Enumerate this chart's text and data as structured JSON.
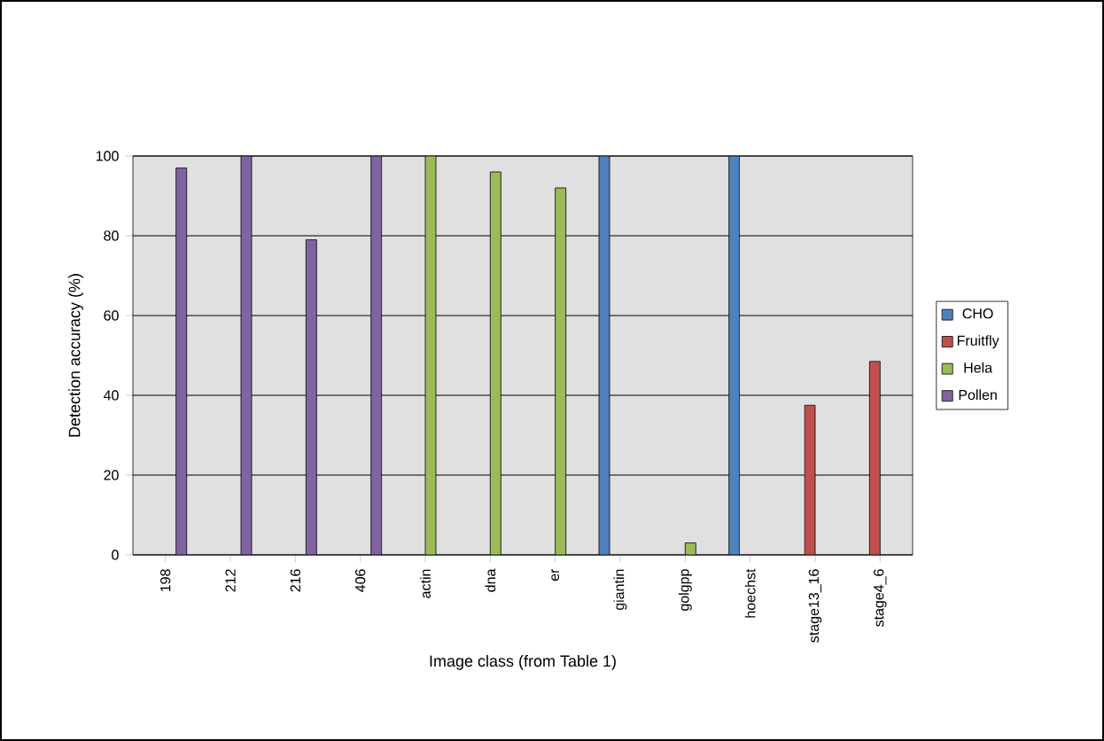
{
  "chart_data": {
    "type": "bar",
    "xlabel": "Image class (from Table 1)",
    "ylabel": "Detection accuracy (%)",
    "categories": [
      "198",
      "212",
      "216",
      "406",
      "actin",
      "dna",
      "er",
      "giantin",
      "golgpp",
      "hoechst",
      "stage13_16",
      "stage4_6"
    ],
    "series": [
      {
        "name": "CHO",
        "color": "#4f81bd",
        "values": [
          null,
          null,
          null,
          null,
          null,
          null,
          null,
          100,
          null,
          100,
          null,
          null
        ]
      },
      {
        "name": "Fruitfly",
        "color": "#c0504d",
        "values": [
          null,
          null,
          null,
          null,
          null,
          null,
          null,
          null,
          null,
          null,
          37.5,
          48.5
        ]
      },
      {
        "name": "Hela",
        "color": "#9bbb59",
        "values": [
          null,
          null,
          null,
          null,
          100,
          96,
          92,
          null,
          3,
          null,
          null,
          null
        ]
      },
      {
        "name": "Pollen",
        "color": "#8064a2",
        "values": [
          97,
          100,
          79,
          100,
          null,
          null,
          null,
          null,
          null,
          null,
          null,
          null
        ]
      }
    ],
    "ylim": [
      0,
      100
    ],
    "yticks": [
      0,
      20,
      40,
      60,
      80,
      100
    ],
    "grid": "y",
    "legend": "right"
  }
}
